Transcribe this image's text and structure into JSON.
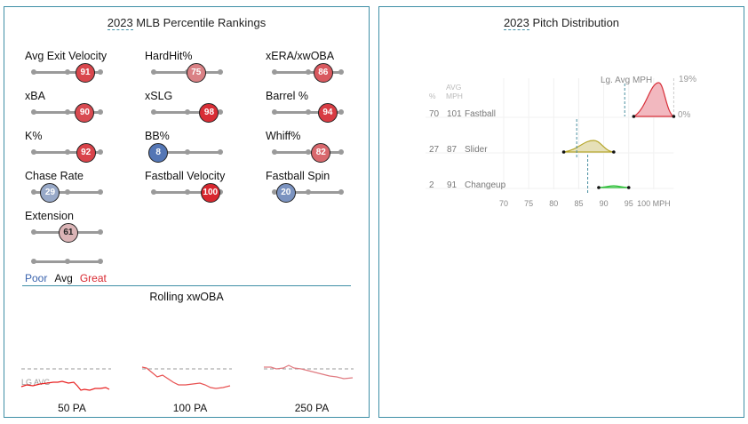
{
  "percentile": {
    "title_year": "2023",
    "title_rest": " MLB Percentile Rankings",
    "metrics": [
      {
        "label": "Avg Exit Velocity",
        "value": 91
      },
      {
        "label": "HardHit%",
        "value": 75
      },
      {
        "label": "xERA/xwOBA",
        "value": 86
      },
      {
        "label": "xBA",
        "value": 90
      },
      {
        "label": "xSLG",
        "value": 98
      },
      {
        "label": "Barrel %",
        "value": 94
      },
      {
        "label": "K%",
        "value": 92
      },
      {
        "label": "BB%",
        "value": 8
      },
      {
        "label": "Whiff%",
        "value": 82
      },
      {
        "label": "Chase Rate",
        "value": 29
      },
      {
        "label": "Fastball Velocity",
        "value": 100
      },
      {
        "label": "Fastball Spin",
        "value": 20
      },
      {
        "label": "Extension",
        "value": 61
      }
    ],
    "legend": {
      "poor": "Poor",
      "avg": "Avg",
      "great": "Great"
    },
    "colors": {
      "poor": "#3a63ad",
      "great": "#d8262e"
    }
  },
  "rolling": {
    "title": "Rolling xwOBA",
    "lg_avg": "LG AVG",
    "windows": [
      "50 PA",
      "100 PA",
      "250 PA"
    ]
  },
  "chart_data": {
    "type": "area",
    "title_year": "2023",
    "title_rest": " Pitch Distribution",
    "lg_avg_label": "Lg. Avg MPH",
    "ymax_label": "19%",
    "ymin_label": "0%",
    "col_headers": {
      "pct": "%",
      "avg": "AVG",
      "mph": "MPH"
    },
    "xticks": [
      70,
      75,
      80,
      85,
      90,
      95,
      100
    ],
    "xunit": "MPH",
    "xlim": [
      70,
      104
    ],
    "pitches": [
      {
        "name": "Fastball",
        "pct": 70,
        "avg_mph": 101,
        "min": 96,
        "max": 104,
        "peak": 101,
        "lg_avg": 94.2,
        "color": "#d8303a",
        "fill": "#f2b8bf"
      },
      {
        "name": "Slider",
        "pct": 27,
        "avg_mph": 87,
        "min": 82,
        "max": 92,
        "peak": 88,
        "lg_avg": 84.6,
        "color": "#b5a62a",
        "fill": "#e6e0b8"
      },
      {
        "name": "Changeup",
        "pct": 2,
        "avg_mph": 91,
        "min": 89,
        "max": 95,
        "peak": 92,
        "lg_avg": 86.8,
        "color": "#2fbf3a",
        "fill": "#b9ecbc"
      }
    ]
  }
}
